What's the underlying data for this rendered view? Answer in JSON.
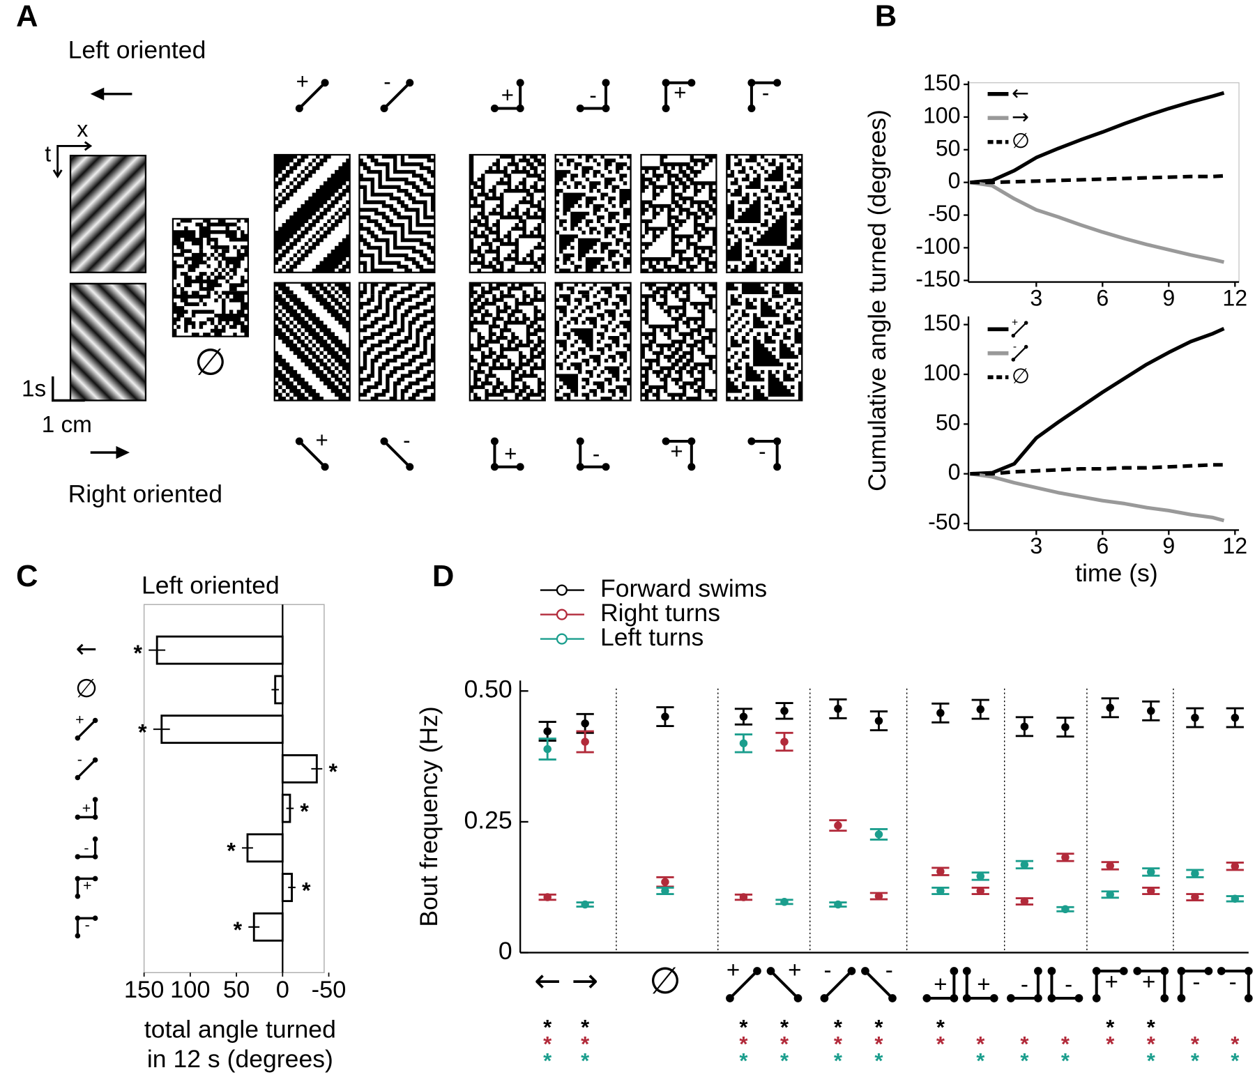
{
  "panel_labels": [
    "A",
    "B",
    "C",
    "D"
  ],
  "panel_a": {
    "left_label": "Left oriented",
    "right_label": "Right oriented",
    "space_axis": "x",
    "time_axis": "t",
    "scale_time": "1s",
    "scale_space": "1 cm",
    "null_symbol": "∅",
    "gliders_top": [
      "+",
      "-",
      "+",
      "-",
      "+",
      "-"
    ],
    "gliders_bottom": [
      "+",
      "-",
      "+",
      "-",
      "+",
      "-"
    ]
  },
  "chart_data": [
    {
      "type": "line",
      "ylabel": "Cumulative angle turned (degrees)",
      "x": [
        0,
        1,
        2,
        3,
        4,
        5,
        6,
        7,
        8,
        9,
        10,
        11,
        11.5
      ],
      "xlim": [
        0,
        12
      ],
      "xticks": [
        3,
        6,
        9,
        12
      ],
      "ylim": [
        -150,
        150
      ],
      "yticks": [
        -150,
        -100,
        -50,
        0,
        50,
        100,
        150
      ],
      "series": [
        {
          "name": "←",
          "color": "#000000",
          "values": [
            0,
            3,
            18,
            38,
            52,
            65,
            77,
            90,
            102,
            113,
            123,
            132,
            137
          ]
        },
        {
          "name": "→",
          "color": "#999999",
          "values": [
            0,
            -5,
            -25,
            -42,
            -53,
            -65,
            -76,
            -86,
            -95,
            -103,
            -111,
            -118,
            -122
          ]
        },
        {
          "name": "∅",
          "color": "#000000",
          "dashed": true,
          "values": [
            0,
            0,
            1,
            2,
            3,
            4,
            5,
            6,
            7,
            8,
            9,
            9,
            10
          ]
        }
      ]
    },
    {
      "type": "line",
      "xlabel": "time (s)",
      "x": [
        0,
        1,
        2,
        3,
        4,
        5,
        6,
        7,
        8,
        9,
        10,
        11,
        11.5
      ],
      "xlim": [
        0,
        12
      ],
      "xticks": [
        3,
        6,
        9,
        12
      ],
      "ylim": [
        -55,
        155
      ],
      "yticks": [
        -50,
        0,
        50,
        100,
        150
      ],
      "series": [
        {
          "name": "+",
          "color": "#000000",
          "values": [
            0,
            1,
            10,
            36,
            52,
            67,
            82,
            96,
            110,
            122,
            133,
            141,
            146
          ]
        },
        {
          "name": "-",
          "color": "#999999",
          "values": [
            0,
            -3,
            -9,
            -14,
            -19,
            -23,
            -27,
            -30,
            -34,
            -37,
            -41,
            -44,
            -47
          ]
        },
        {
          "name": "∅",
          "color": "#000000",
          "dashed": true,
          "values": [
            0,
            0,
            2,
            3,
            4,
            5,
            5,
            6,
            6,
            7,
            8,
            9,
            9
          ]
        }
      ]
    },
    {
      "type": "barh",
      "title": "Left oriented",
      "categories": [
        "←",
        "∅",
        "+",
        "-",
        "+",
        "-",
        "+",
        "-"
      ],
      "values": [
        136,
        8,
        131,
        -37,
        -8,
        38,
        -10,
        31
      ],
      "errors": [
        9,
        4,
        9,
        6,
        4,
        6,
        4,
        6
      ],
      "significance": [
        "*",
        null,
        "*",
        "*",
        "*",
        "*",
        "*",
        "*"
      ],
      "xlim": [
        150,
        -45
      ],
      "xticks": [
        150,
        100,
        50,
        0,
        -50
      ],
      "xlabel": [
        "total angle turned",
        "in 12 s (degrees)"
      ],
      "color": "#ffffff",
      "edgecolor": "#000000"
    },
    {
      "type": "errorbar",
      "ylabel": "Bout frequency (Hz)",
      "categories": [
        "←",
        "→",
        "∅",
        "+",
        "+",
        "-",
        "-",
        "+",
        "+",
        "-",
        "-",
        "+",
        "+",
        "-",
        "-"
      ],
      "ylim": [
        0,
        0.52
      ],
      "yticks": [
        0,
        0.25,
        {
          "value": 0.5,
          "label": "0.50"
        }
      ],
      "series": [
        {
          "name": "Forward swims",
          "color": "#000000",
          "values": [
            0.423,
            0.438,
            0.451,
            0.451,
            0.462,
            0.466,
            0.443,
            0.458,
            0.465,
            0.432,
            0.431,
            0.468,
            0.462,
            0.449,
            0.449
          ],
          "errors": [
            0.018,
            0.018,
            0.018,
            0.015,
            0.015,
            0.018,
            0.018,
            0.018,
            0.018,
            0.018,
            0.018,
            0.018,
            0.018,
            0.018,
            0.018
          ],
          "significance": [
            "*",
            "*",
            null,
            "*",
            "*",
            "*",
            "*",
            "*",
            null,
            null,
            null,
            "*",
            "*",
            null,
            null
          ]
        },
        {
          "name": "Right turns",
          "color": "#b22a3a",
          "values": [
            0.106,
            0.403,
            0.135,
            0.106,
            0.403,
            0.243,
            0.108,
            0.155,
            0.118,
            0.098,
            0.182,
            0.166,
            0.118,
            0.106,
            0.165
          ],
          "errors": [
            0.005,
            0.02,
            0.009,
            0.005,
            0.017,
            0.01,
            0.006,
            0.007,
            0.006,
            0.006,
            0.007,
            0.007,
            0.006,
            0.006,
            0.007
          ],
          "significance": [
            "*",
            "*",
            null,
            "*",
            "*",
            "*",
            "*",
            "*",
            "*",
            "*",
            "*",
            "*",
            "*",
            "*",
            "*"
          ]
        },
        {
          "name": "Left turns",
          "color": "#1b9e8d",
          "values": [
            0.389,
            0.092,
            0.118,
            0.4,
            0.097,
            0.092,
            0.226,
            0.118,
            0.146,
            0.168,
            0.083,
            0.111,
            0.154,
            0.151,
            0.103
          ],
          "errors": [
            0.02,
            0.004,
            0.006,
            0.017,
            0.004,
            0.004,
            0.01,
            0.006,
            0.007,
            0.007,
            0.004,
            0.006,
            0.007,
            0.007,
            0.005
          ],
          "significance": [
            "*",
            "*",
            null,
            "*",
            "*",
            "*",
            "*",
            null,
            "*",
            "*",
            "*",
            null,
            "*",
            "*",
            "*"
          ]
        }
      ]
    }
  ]
}
